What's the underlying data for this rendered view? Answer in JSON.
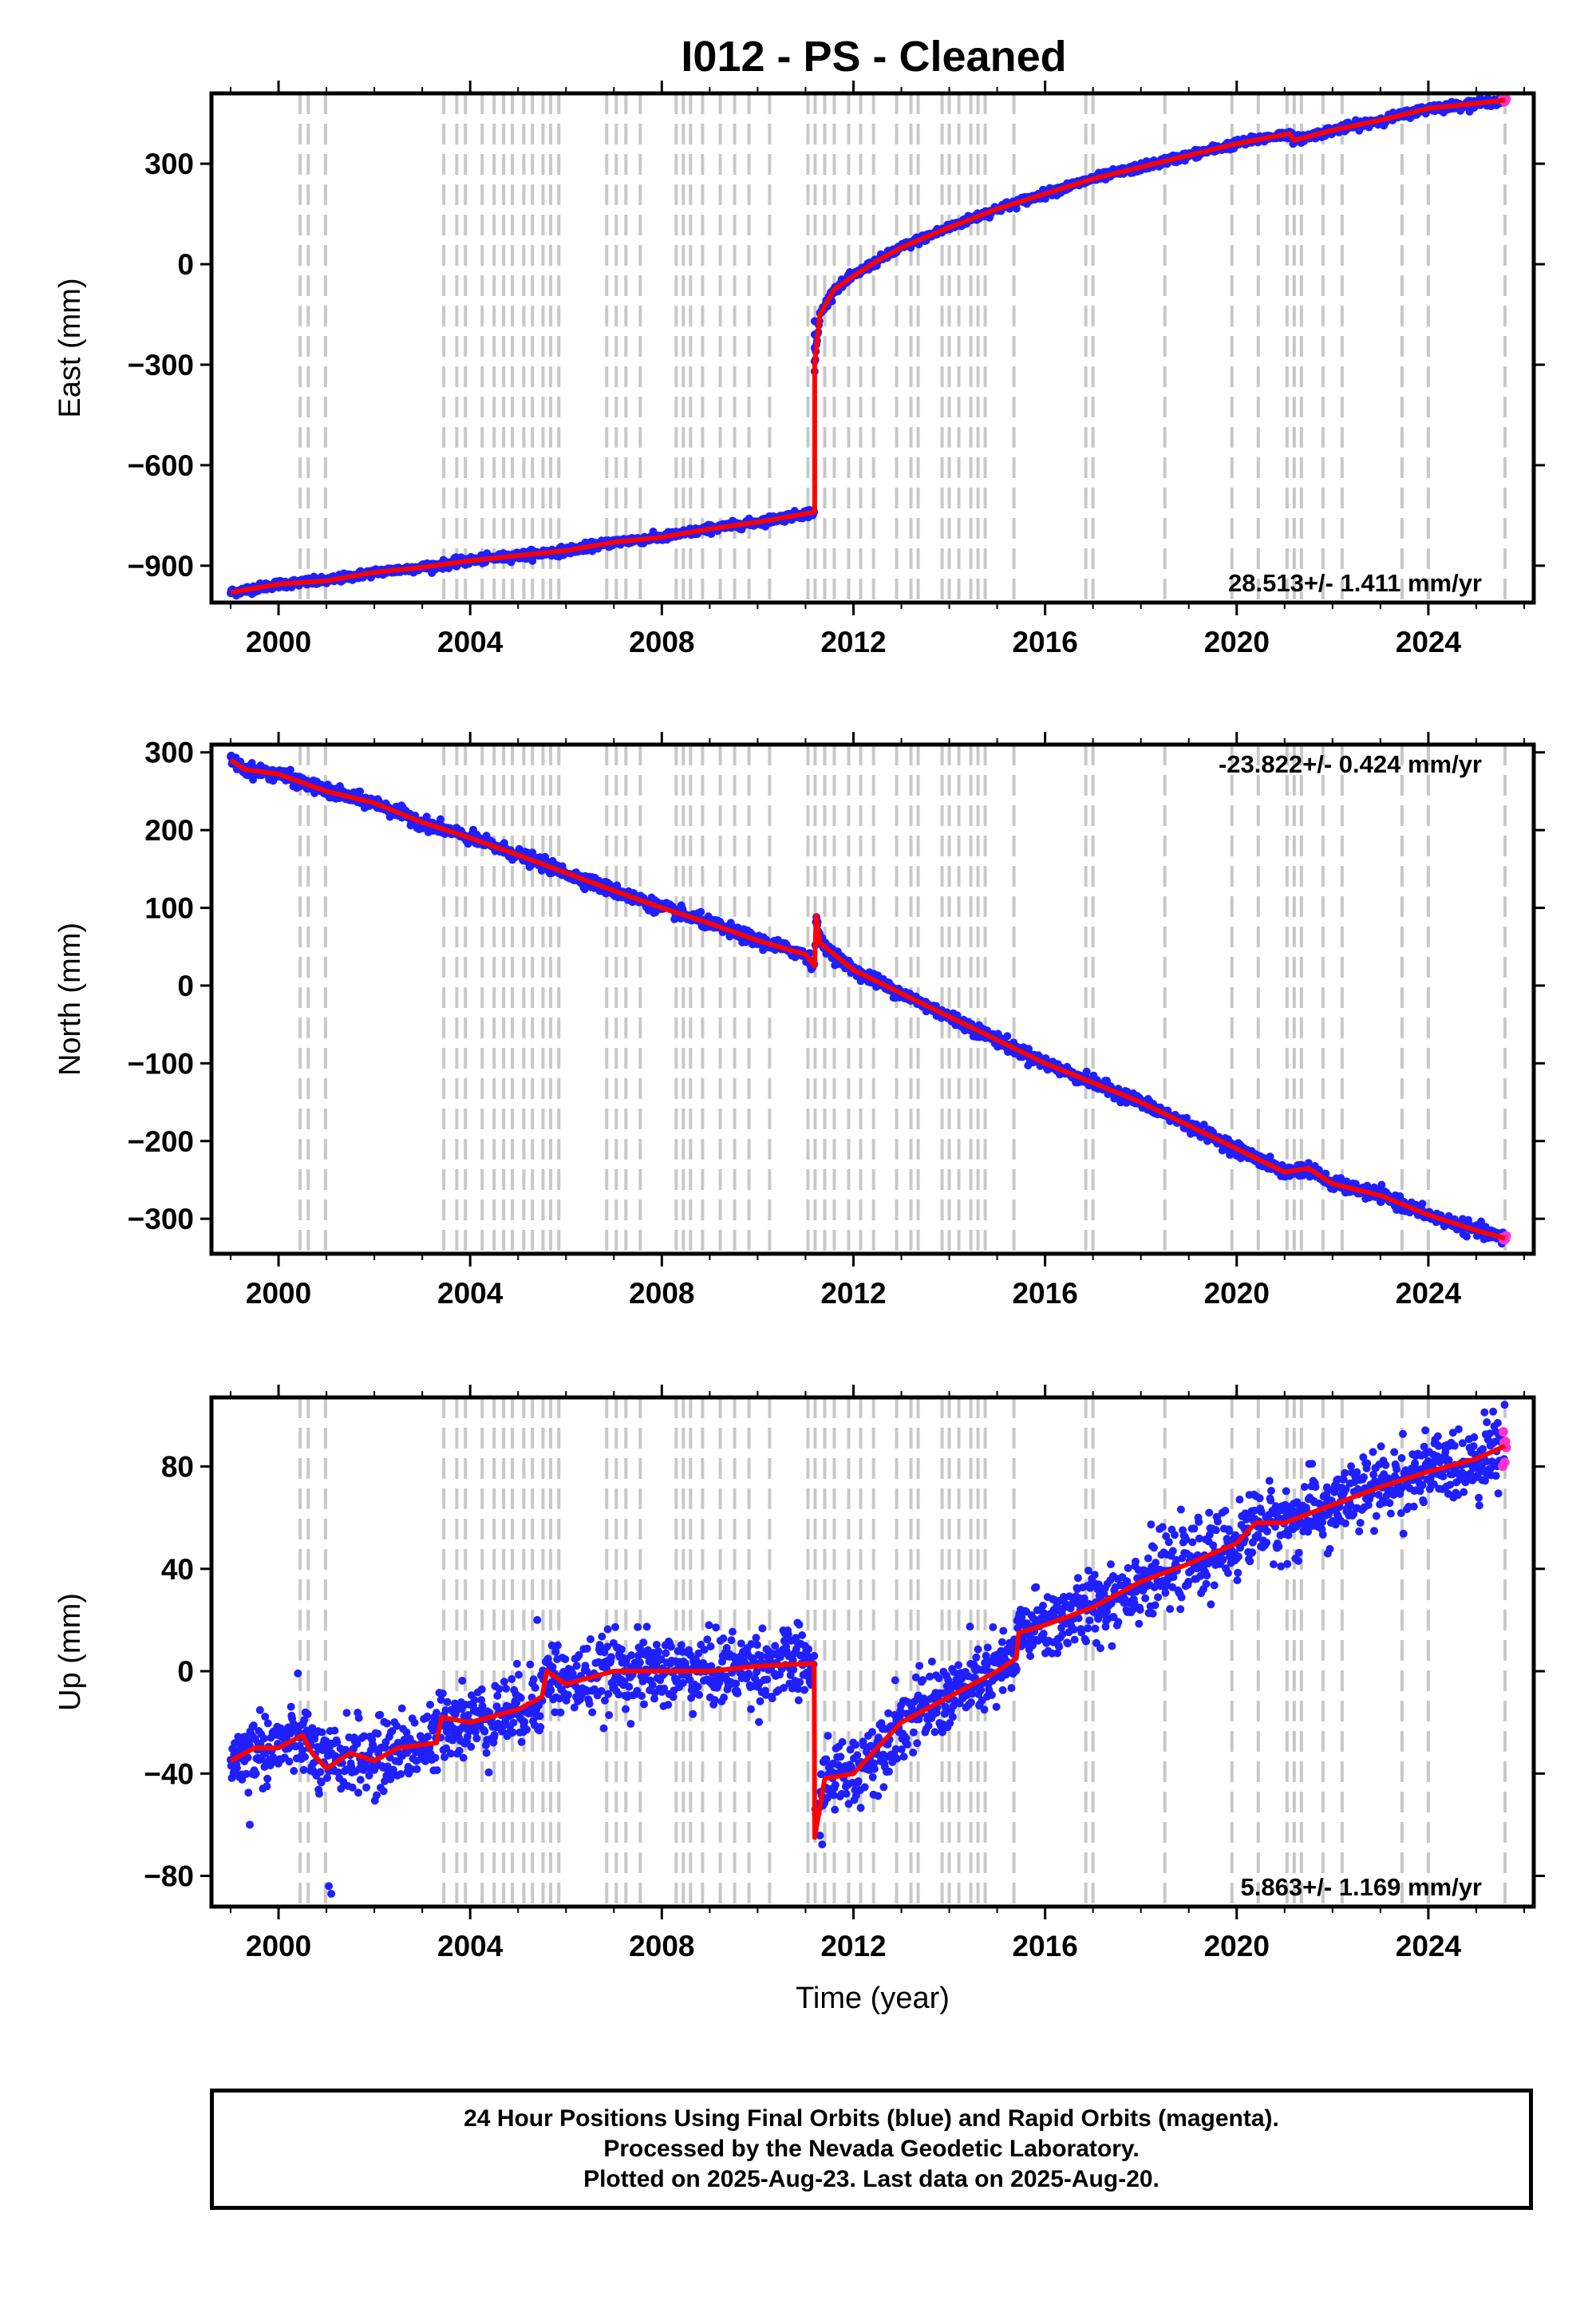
{
  "title": "I012  - PS - Cleaned",
  "footer": {
    "line1": "24 Hour Positions Using Final Orbits (blue) and Rapid Orbits (magenta).",
    "line2": "Processed by the Nevada Geodetic Laboratory.",
    "line3": "Plotted on 2025-Aug-23. Last data on 2025-Aug-20."
  },
  "colors": {
    "final": "#1f1fff",
    "rapid": "#ff33cc",
    "model": "#ff0000",
    "event_lines": "#c8c8c8"
  },
  "chart_data": [
    {
      "type": "scatter",
      "panel": "east",
      "ylabel": "East (mm)",
      "xlabel": "",
      "xlim": [
        1998.6,
        2026.2
      ],
      "ylim": [
        -1010,
        510
      ],
      "yticks": [
        300,
        0,
        -300,
        -600,
        -900
      ],
      "ytick_labels": [
        "300",
        "0",
        "−300",
        "−600",
        "−900"
      ],
      "xticks": [
        2000,
        2004,
        2008,
        2012,
        2016,
        2020,
        2024
      ],
      "xtick_labels": [
        "2000",
        "2004",
        "2008",
        "2012",
        "2016",
        "2020",
        "2024"
      ],
      "rate": "28.513+/- 1.411 mm/yr",
      "rate_position": "bottom-right",
      "trend_knots": [
        [
          1999.0,
          -980
        ],
        [
          2000.0,
          -955
        ],
        [
          2001.0,
          -945
        ],
        [
          2002.0,
          -920
        ],
        [
          2003.0,
          -905
        ],
        [
          2004.0,
          -885
        ],
        [
          2005.0,
          -870
        ],
        [
          2006.0,
          -855
        ],
        [
          2007.0,
          -830
        ],
        [
          2008.0,
          -815
        ],
        [
          2009.0,
          -790
        ],
        [
          2010.0,
          -770
        ],
        [
          2011.19,
          -740
        ],
        [
          2011.19,
          -300
        ],
        [
          2011.3,
          -150
        ],
        [
          2011.6,
          -75
        ],
        [
          2012.0,
          -35
        ],
        [
          2012.5,
          10
        ],
        [
          2013.0,
          50
        ],
        [
          2014.0,
          110
        ],
        [
          2015.0,
          165
        ],
        [
          2016.0,
          210
        ],
        [
          2017.0,
          255
        ],
        [
          2018.0,
          290
        ],
        [
          2019.0,
          325
        ],
        [
          2020.0,
          360
        ],
        [
          2021.1,
          390
        ],
        [
          2021.2,
          370
        ],
        [
          2022.0,
          400
        ],
        [
          2023.0,
          430
        ],
        [
          2024.0,
          465
        ],
        [
          2025.0,
          480
        ],
        [
          2025.6,
          490
        ]
      ],
      "noise": 6,
      "events": [
        {
          "t": 2011.19,
          "values": [
            -320,
            -290,
            -250,
            -210,
            -170
          ]
        }
      ]
    },
    {
      "type": "scatter",
      "panel": "north",
      "ylabel": "North (mm)",
      "xlabel": "",
      "xlim": [
        1998.6,
        2026.2
      ],
      "ylim": [
        -345,
        310
      ],
      "yticks": [
        300,
        200,
        100,
        0,
        -100,
        -200,
        -300
      ],
      "ytick_labels": [
        "300",
        "200",
        "100",
        "0",
        "−100",
        "−200",
        "−300"
      ],
      "xticks": [
        2000,
        2004,
        2008,
        2012,
        2016,
        2020,
        2024
      ],
      "xtick_labels": [
        "2000",
        "2004",
        "2008",
        "2012",
        "2016",
        "2020",
        "2024"
      ],
      "rate": "-23.822+/- 0.424 mm/yr",
      "rate_position": "top-right",
      "trend_knots": [
        [
          1999.0,
          290
        ],
        [
          1999.3,
          278
        ],
        [
          2000.0,
          272
        ],
        [
          2001.0,
          250
        ],
        [
          2002.0,
          235
        ],
        [
          2003.0,
          210
        ],
        [
          2004.0,
          190
        ],
        [
          2005.0,
          168
        ],
        [
          2006.0,
          145
        ],
        [
          2007.0,
          122
        ],
        [
          2008.0,
          100
        ],
        [
          2009.0,
          80
        ],
        [
          2010.0,
          58
        ],
        [
          2011.0,
          40
        ],
        [
          2011.19,
          25
        ],
        [
          2011.22,
          90
        ],
        [
          2011.3,
          55
        ],
        [
          2012.0,
          20
        ],
        [
          2013.0,
          -10
        ],
        [
          2014.0,
          -40
        ],
        [
          2015.0,
          -70
        ],
        [
          2016.0,
          -100
        ],
        [
          2017.0,
          -125
        ],
        [
          2018.0,
          -150
        ],
        [
          2019.0,
          -180
        ],
        [
          2020.0,
          -210
        ],
        [
          2021.0,
          -240
        ],
        [
          2021.5,
          -235
        ],
        [
          2022.0,
          -255
        ],
        [
          2023.0,
          -270
        ],
        [
          2024.0,
          -295
        ],
        [
          2025.0,
          -315
        ],
        [
          2025.6,
          -325
        ]
      ],
      "noise": 4,
      "events": []
    },
    {
      "type": "scatter",
      "panel": "up",
      "ylabel": "Up (mm)",
      "xlabel": "Time (year)",
      "xlim": [
        1998.6,
        2026.2
      ],
      "ylim": [
        -92,
        107
      ],
      "yticks": [
        80,
        40,
        0,
        -40,
        -80
      ],
      "ytick_labels": [
        "80",
        "40",
        "0",
        "−40",
        "−80"
      ],
      "xticks": [
        2000,
        2004,
        2008,
        2012,
        2016,
        2020,
        2024
      ],
      "xtick_labels": [
        "2000",
        "2004",
        "2008",
        "2012",
        "2016",
        "2020",
        "2024"
      ],
      "rate": "5.863+/- 1.169 mm/yr",
      "rate_position": "bottom-right",
      "trend_knots": [
        [
          1999.0,
          -35
        ],
        [
          1999.5,
          -30
        ],
        [
          2000.0,
          -30
        ],
        [
          2000.5,
          -25
        ],
        [
          2000.7,
          -32
        ],
        [
          2001.0,
          -38
        ],
        [
          2001.5,
          -32
        ],
        [
          2002.0,
          -35
        ],
        [
          2002.5,
          -30
        ],
        [
          2003.3,
          -28
        ],
        [
          2003.4,
          -18
        ],
        [
          2004.0,
          -20
        ],
        [
          2005.0,
          -15
        ],
        [
          2005.5,
          -10
        ],
        [
          2005.6,
          0
        ],
        [
          2006.0,
          -5
        ],
        [
          2007.0,
          0
        ],
        [
          2008.0,
          0
        ],
        [
          2009.0,
          0
        ],
        [
          2010.0,
          2
        ],
        [
          2011.18,
          3
        ],
        [
          2011.19,
          -65
        ],
        [
          2011.4,
          -42
        ],
        [
          2012.0,
          -40
        ],
        [
          2012.5,
          -30
        ],
        [
          2013.0,
          -20
        ],
        [
          2014.0,
          -10
        ],
        [
          2015.0,
          0
        ],
        [
          2015.4,
          5
        ],
        [
          2015.45,
          15
        ],
        [
          2016.0,
          18
        ],
        [
          2017.0,
          25
        ],
        [
          2018.0,
          35
        ],
        [
          2019.0,
          42
        ],
        [
          2020.0,
          50
        ],
        [
          2020.4,
          58
        ],
        [
          2021.0,
          58
        ],
        [
          2022.0,
          65
        ],
        [
          2023.0,
          72
        ],
        [
          2024.0,
          78
        ],
        [
          2025.0,
          83
        ],
        [
          2025.6,
          88
        ]
      ],
      "noise": 7,
      "events": [],
      "outliers": [
        [
          2001.05,
          -84
        ],
        [
          2001.1,
          -87
        ],
        [
          1999.4,
          -60
        ],
        [
          2021.9,
          46
        ],
        [
          2005.4,
          20
        ]
      ]
    }
  ],
  "event_line_years": [
    2000.45,
    2000.62,
    2000.98,
    2003.45,
    2003.72,
    2003.9,
    2004.25,
    2004.5,
    2004.7,
    2004.88,
    2005.12,
    2005.3,
    2005.52,
    2005.68,
    2005.85,
    2006.85,
    2007.05,
    2007.25,
    2007.55,
    2008.3,
    2008.45,
    2008.6,
    2008.85,
    2009.22,
    2009.52,
    2009.82,
    2010.25,
    2011.05,
    2011.2,
    2011.4,
    2011.6,
    2011.9,
    2012.15,
    2012.42,
    2012.9,
    2013.2,
    2013.35,
    2013.85,
    2014.0,
    2014.2,
    2014.45,
    2014.6,
    2014.75,
    2015.35,
    2016.85,
    2017.0,
    2018.5,
    2019.9,
    2020.45,
    2021.05,
    2021.2,
    2021.35,
    2021.8,
    2022.2,
    2023.45,
    2024.0,
    2025.6
  ]
}
